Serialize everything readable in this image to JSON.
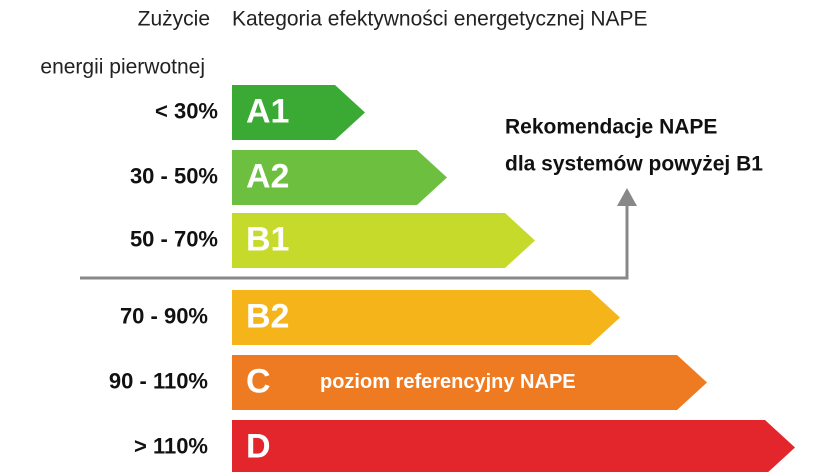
{
  "header": {
    "consumption": [
      "Zużycie",
      "energii pierwotnej"
    ],
    "category": "Kategoria efektywności energetycznej NAPE"
  },
  "rows": [
    {
      "range": "< 30%",
      "label": "A1",
      "color": "#3aaa35"
    },
    {
      "range": "30 - 50%",
      "label": "A2",
      "color": "#6cbf3f"
    },
    {
      "range": "50 - 70%",
      "label": "B1",
      "color": "#c6da2b"
    },
    {
      "range": "70 - 90%",
      "label": "B2",
      "color": "#f5b51a"
    },
    {
      "range": "90 - 110%",
      "label": "C",
      "color": "#ee7a22",
      "note": "poziom referencyjny NAPE"
    },
    {
      "range": "> 110%",
      "label": "D",
      "color": "#e3262b"
    }
  ],
  "recommendation": [
    "Rekomendacje NAPE",
    "dla systemów powyżej B1"
  ]
}
